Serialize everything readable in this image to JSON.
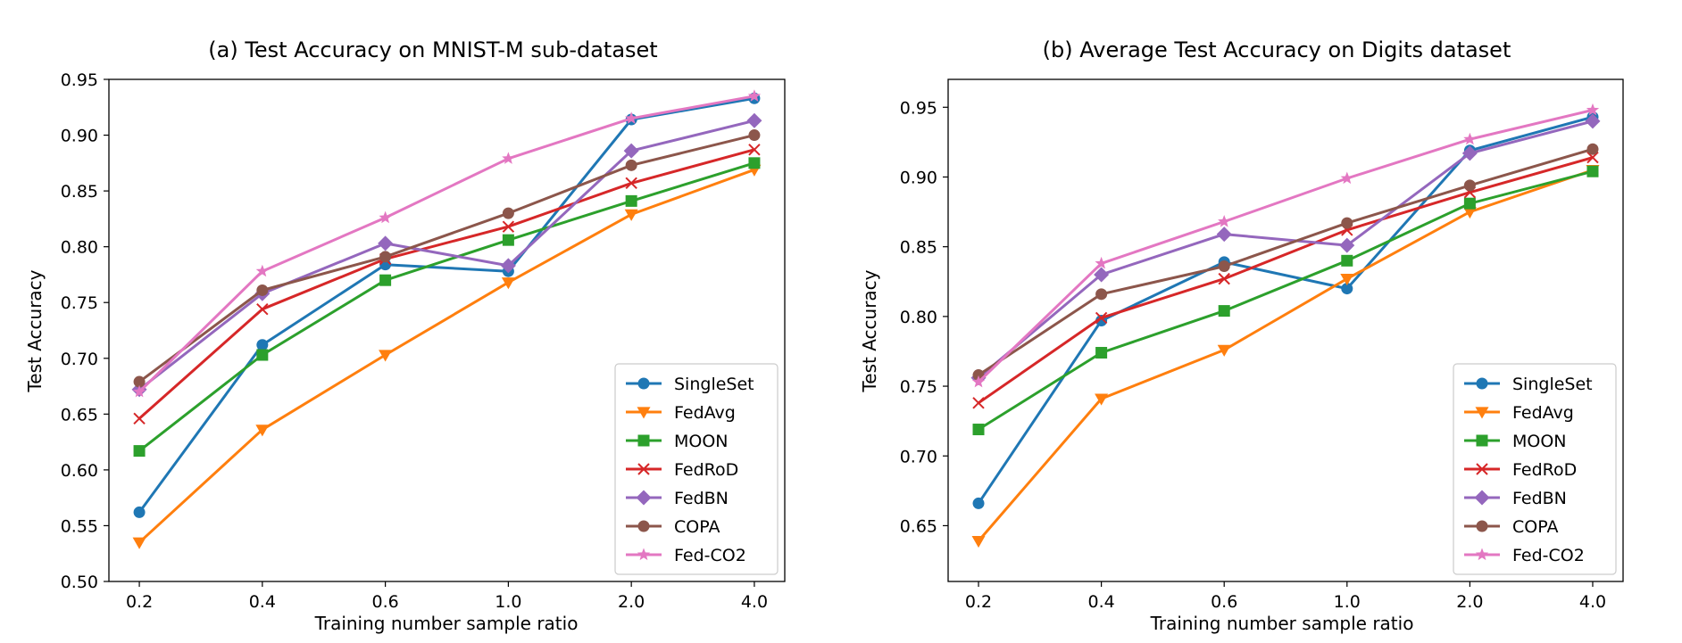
{
  "chart_data": [
    {
      "type": "line",
      "title": "(a) Test Accuracy on MNIST-M sub-dataset",
      "xlabel": "Training number sample ratio",
      "ylabel": "Test Accuracy",
      "categories": [
        "0.2",
        "0.4",
        "0.6",
        "1.0",
        "2.0",
        "4.0"
      ],
      "ylim": [
        0.5,
        0.95
      ],
      "yticks": [
        "0.50",
        "0.55",
        "0.60",
        "0.65",
        "0.70",
        "0.75",
        "0.80",
        "0.85",
        "0.90",
        "0.95"
      ],
      "legend_position": "lower-right",
      "series": [
        {
          "name": "SingleSet",
          "color": "#1f77b4",
          "marker": "circle",
          "values": [
            0.562,
            0.712,
            0.784,
            0.778,
            0.914,
            0.933
          ]
        },
        {
          "name": "FedAvg",
          "color": "#ff7f0e",
          "marker": "triangle-down",
          "values": [
            0.535,
            0.636,
            0.703,
            0.768,
            0.829,
            0.869
          ]
        },
        {
          "name": "MOON",
          "color": "#2ca02c",
          "marker": "square",
          "values": [
            0.617,
            0.703,
            0.77,
            0.806,
            0.841,
            0.875
          ]
        },
        {
          "name": "FedRoD",
          "color": "#d62728",
          "marker": "x",
          "values": [
            0.646,
            0.744,
            0.789,
            0.818,
            0.857,
            0.887
          ]
        },
        {
          "name": "FedBN",
          "color": "#9467bd",
          "marker": "diamond",
          "values": [
            0.672,
            0.758,
            0.803,
            0.783,
            0.886,
            0.913
          ]
        },
        {
          "name": "COPA",
          "color": "#8c564b",
          "marker": "circle",
          "values": [
            0.679,
            0.761,
            0.791,
            0.83,
            0.873,
            0.9
          ]
        },
        {
          "name": "Fed-CO2",
          "color": "#e377c2",
          "marker": "star",
          "values": [
            0.67,
            0.778,
            0.826,
            0.879,
            0.915,
            0.935
          ]
        }
      ]
    },
    {
      "type": "line",
      "title": "(b) Average Test Accuracy on Digits dataset",
      "xlabel": "Training number sample ratio",
      "ylabel": "Test Accuracy",
      "categories": [
        "0.2",
        "0.4",
        "0.6",
        "1.0",
        "2.0",
        "4.0"
      ],
      "ylim": [
        0.61,
        0.97
      ],
      "yticks": [
        "0.65",
        "0.70",
        "0.75",
        "0.80",
        "0.85",
        "0.90",
        "0.95"
      ],
      "legend_position": "lower-right",
      "series": [
        {
          "name": "SingleSet",
          "color": "#1f77b4",
          "marker": "circle",
          "values": [
            0.666,
            0.797,
            0.839,
            0.82,
            0.919,
            0.943
          ]
        },
        {
          "name": "FedAvg",
          "color": "#ff7f0e",
          "marker": "triangle-down",
          "values": [
            0.639,
            0.741,
            0.776,
            0.827,
            0.875,
            0.905
          ]
        },
        {
          "name": "MOON",
          "color": "#2ca02c",
          "marker": "square",
          "values": [
            0.719,
            0.774,
            0.804,
            0.84,
            0.881,
            0.904
          ]
        },
        {
          "name": "FedRoD",
          "color": "#d62728",
          "marker": "x",
          "values": [
            0.738,
            0.799,
            0.827,
            0.862,
            0.889,
            0.914
          ]
        },
        {
          "name": "FedBN",
          "color": "#9467bd",
          "marker": "diamond",
          "values": [
            0.756,
            0.83,
            0.859,
            0.851,
            0.917,
            0.94
          ]
        },
        {
          "name": "COPA",
          "color": "#8c564b",
          "marker": "circle",
          "values": [
            0.758,
            0.816,
            0.836,
            0.867,
            0.894,
            0.92
          ]
        },
        {
          "name": "Fed-CO2",
          "color": "#e377c2",
          "marker": "star",
          "values": [
            0.753,
            0.838,
            0.868,
            0.899,
            0.927,
            0.948
          ]
        }
      ]
    }
  ]
}
